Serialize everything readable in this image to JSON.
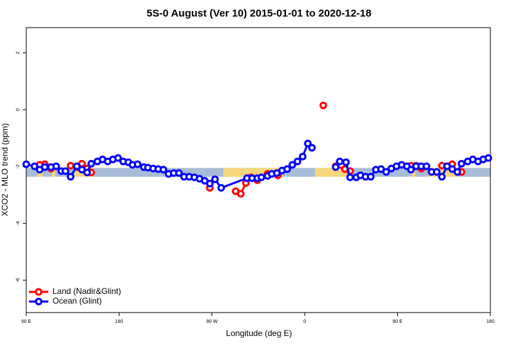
{
  "chart_data": {
    "type": "line",
    "title": "5S-0 August (Ver 10)   2015-01-01 to 2020-12-18",
    "x_label": "Longitude (deg E)",
    "y_label": "XCO2 - MLO trend (ppm)",
    "xlim": [
      90,
      540
    ],
    "ylim": [
      -7.14,
      2.89
    ],
    "xticks": [
      {
        "value": 90,
        "label": "90 E"
      },
      180,
      {
        "value": 270,
        "label": "90 W"
      },
      {
        "value": 360,
        "label": "0"
      },
      {
        "value": 450,
        "label": "90 E"
      },
      {
        "value": 540,
        "label": "180"
      }
    ],
    "yticks": [
      2,
      0,
      -2,
      -4,
      -6
    ],
    "legend": "bottomleft",
    "band": {
      "ylim": [
        -2.36,
        -2.05
      ],
      "color": "#a7bcd9"
    },
    "land_bands": {
      "color": "#f7d77c",
      "ranges": [
        [
          101,
          106
        ],
        [
          115,
          118
        ],
        [
          137,
          155
        ],
        [
          281,
          338
        ],
        [
          370,
          404
        ],
        [
          464,
          467
        ],
        [
          480,
          508
        ]
      ]
    },
    "series": [
      {
        "name": "Land (Nadir&Glint)",
        "color": "#ff0000",
        "x": [
          103,
          108,
          114,
          null,
          133,
          139,
          144,
          149,
          153,
          null,
          268,
          null,
          293,
          298,
          303,
          308,
          314,
          null,
          324,
          null,
          334,
          null,
          378,
          null,
          390,
          399,
          404,
          null,
          463,
          468,
          473,
          null,
          493,
          null,
          503,
          null,
          512
        ],
        "values": [
          -1.94,
          -1.92,
          -2.07,
          null,
          -1.97,
          -2.02,
          -1.9,
          -2.07,
          -2.21,
          null,
          -2.75,
          null,
          -2.87,
          -2.96,
          -2.58,
          -2.38,
          -2.48,
          null,
          -2.26,
          null,
          -2.31,
          null,
          0.15,
          null,
          -1.99,
          -2.09,
          -2.16,
          null,
          -1.97,
          -1.97,
          -2.07,
          null,
          -1.97,
          null,
          -1.92,
          null,
          -2.19
        ]
      },
      {
        "name": "Ocean (Glint)",
        "color": "#0000ff",
        "x": [
          90,
          98,
          103,
          108,
          114,
          119,
          124,
          128,
          133,
          139,
          144,
          149,
          153,
          159,
          164,
          169,
          174,
          179,
          184,
          189,
          193,
          198,
          204,
          208,
          213,
          218,
          223,
          228,
          233,
          238,
          243,
          248,
          253,
          258,
          263,
          268,
          273,
          279,
          304,
          309,
          314,
          318,
          324,
          328,
          333,
          338,
          343,
          348,
          353,
          358,
          363,
          367,
          null,
          390,
          394,
          400,
          404,
          410,
          414,
          419,
          424,
          429,
          434,
          439,
          444,
          449,
          454,
          459,
          463,
          468,
          473,
          478,
          483,
          488,
          493,
          498,
          503,
          508,
          512,
          518,
          523,
          528,
          533,
          538
        ],
        "values": [
          -1.92,
          -1.99,
          -2.11,
          -2.02,
          -2.02,
          -1.99,
          -2.16,
          -2.16,
          -2.36,
          -1.99,
          -2.11,
          -2.21,
          -1.9,
          -1.82,
          -1.75,
          -1.82,
          -1.75,
          -1.7,
          -1.82,
          -1.85,
          -1.94,
          -1.92,
          -2.02,
          -2.04,
          -2.07,
          -2.09,
          -2.11,
          -2.26,
          -2.23,
          -2.23,
          -2.36,
          -2.36,
          -2.38,
          -2.43,
          -2.5,
          -2.6,
          -2.45,
          -2.75,
          -2.41,
          -2.41,
          -2.41,
          -2.38,
          -2.33,
          -2.26,
          -2.23,
          -2.14,
          -2.09,
          -1.94,
          -1.82,
          -1.65,
          -1.19,
          -1.34,
          null,
          -2.02,
          -1.82,
          -1.85,
          -2.38,
          -2.38,
          -2.31,
          -2.36,
          -2.36,
          -2.11,
          -2.09,
          -2.19,
          -2.07,
          -1.99,
          -1.94,
          -1.99,
          -2.11,
          -1.99,
          -1.99,
          -1.99,
          -2.19,
          -2.19,
          -2.36,
          -1.99,
          -2.09,
          -2.19,
          -1.9,
          -1.82,
          -1.75,
          -1.82,
          -1.75,
          -1.7
        ]
      }
    ]
  }
}
